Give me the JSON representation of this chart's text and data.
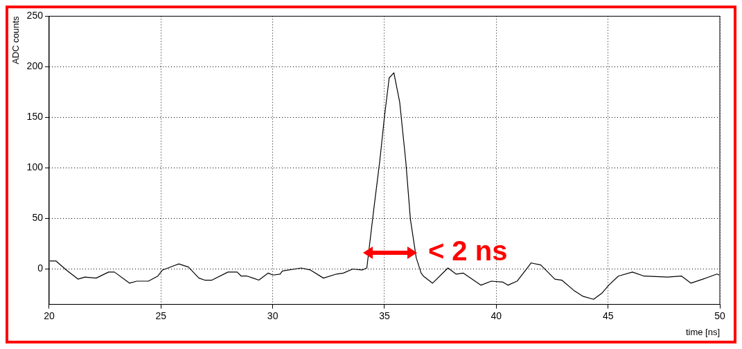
{
  "chart_data": {
    "type": "line",
    "xlabel": "time [ns]",
    "ylabel": "ADC counts",
    "x": [
      20.03,
      20.3,
      20.77,
      21.29,
      21.6,
      22.1,
      22.66,
      22.92,
      23.6,
      23.92,
      24.44,
      24.86,
      25.07,
      25.8,
      26.23,
      26.7,
      26.96,
      27.28,
      28.0,
      28.41,
      28.59,
      28.86,
      29.12,
      29.38,
      29.8,
      30.01,
      30.33,
      30.43,
      31.27,
      31.69,
      32.27,
      32.85,
      33.16,
      33.58,
      34.0,
      34.21,
      34.52,
      34.79,
      35.0,
      35.21,
      35.42,
      35.68,
      35.95,
      36.16,
      36.42,
      36.64,
      36.74,
      37.15,
      37.84,
      38.2,
      38.52,
      39.31,
      39.78,
      40.3,
      40.52,
      40.93,
      41.56,
      41.99,
      42.62,
      42.93,
      43.46,
      43.88,
      44.35,
      44.72,
      45.03,
      45.46,
      46.09,
      46.61,
      47.66,
      48.29,
      48.71,
      49.24,
      49.87,
      49.97
    ],
    "series": [
      {
        "color": "#000000",
        "values": [
          8,
          8,
          -1,
          -10,
          -8,
          -9,
          -3,
          -3,
          -14,
          -12,
          -12,
          -7,
          -1,
          5,
          2,
          -9,
          -11,
          -11,
          -3,
          -3,
          -7,
          -7,
          -9,
          -11,
          -4,
          -6,
          -5,
          -2,
          1,
          -1,
          -9,
          -5,
          -4,
          0,
          -1,
          1,
          59,
          107,
          151,
          189,
          194,
          165,
          107,
          49,
          11,
          -4,
          -7,
          -14,
          1,
          -5,
          -4,
          -16,
          -12,
          -13,
          -16,
          -12,
          6,
          4,
          -10,
          -11,
          -21,
          -27,
          -30,
          -24,
          -16,
          -7,
          -3,
          -7,
          -8,
          -7,
          -14,
          -10,
          -5,
          -6
        ]
      }
    ],
    "xlim": [
      20,
      50
    ],
    "xticks": [
      20,
      25,
      30,
      35,
      40,
      45,
      50
    ],
    "ylim": [
      -35,
      250
    ],
    "yticks": [
      0,
      50,
      100,
      150,
      200,
      250
    ],
    "grid": true,
    "legend": false,
    "marker": "none",
    "line_style": "solid",
    "annotations": [
      "< 2 ns"
    ]
  }
}
